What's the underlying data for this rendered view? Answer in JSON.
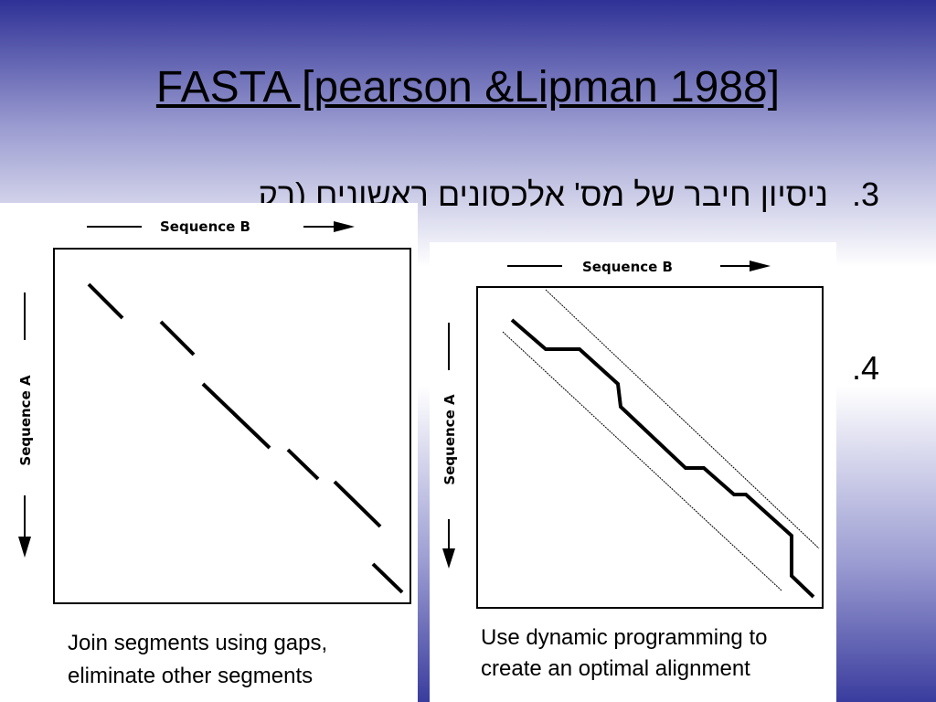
{
  "slide": {
    "title": "FASTA [pearson &Lipman 1988]",
    "items": [
      {
        "number": "3.",
        "text": "ניסיון חיבר של מס' אלכסונים ראשונים (רק"
      },
      {
        "number": "4."
      }
    ],
    "figures": [
      {
        "x_axis": "Sequence B",
        "y_axis": "Sequence A",
        "caption": [
          "Join segments using gaps,",
          "eliminate other segments"
        ]
      },
      {
        "x_axis": "Sequence B",
        "y_axis": "Sequence A",
        "caption": [
          "Use dynamic programming to",
          "create an optimal alignment"
        ]
      }
    ]
  }
}
